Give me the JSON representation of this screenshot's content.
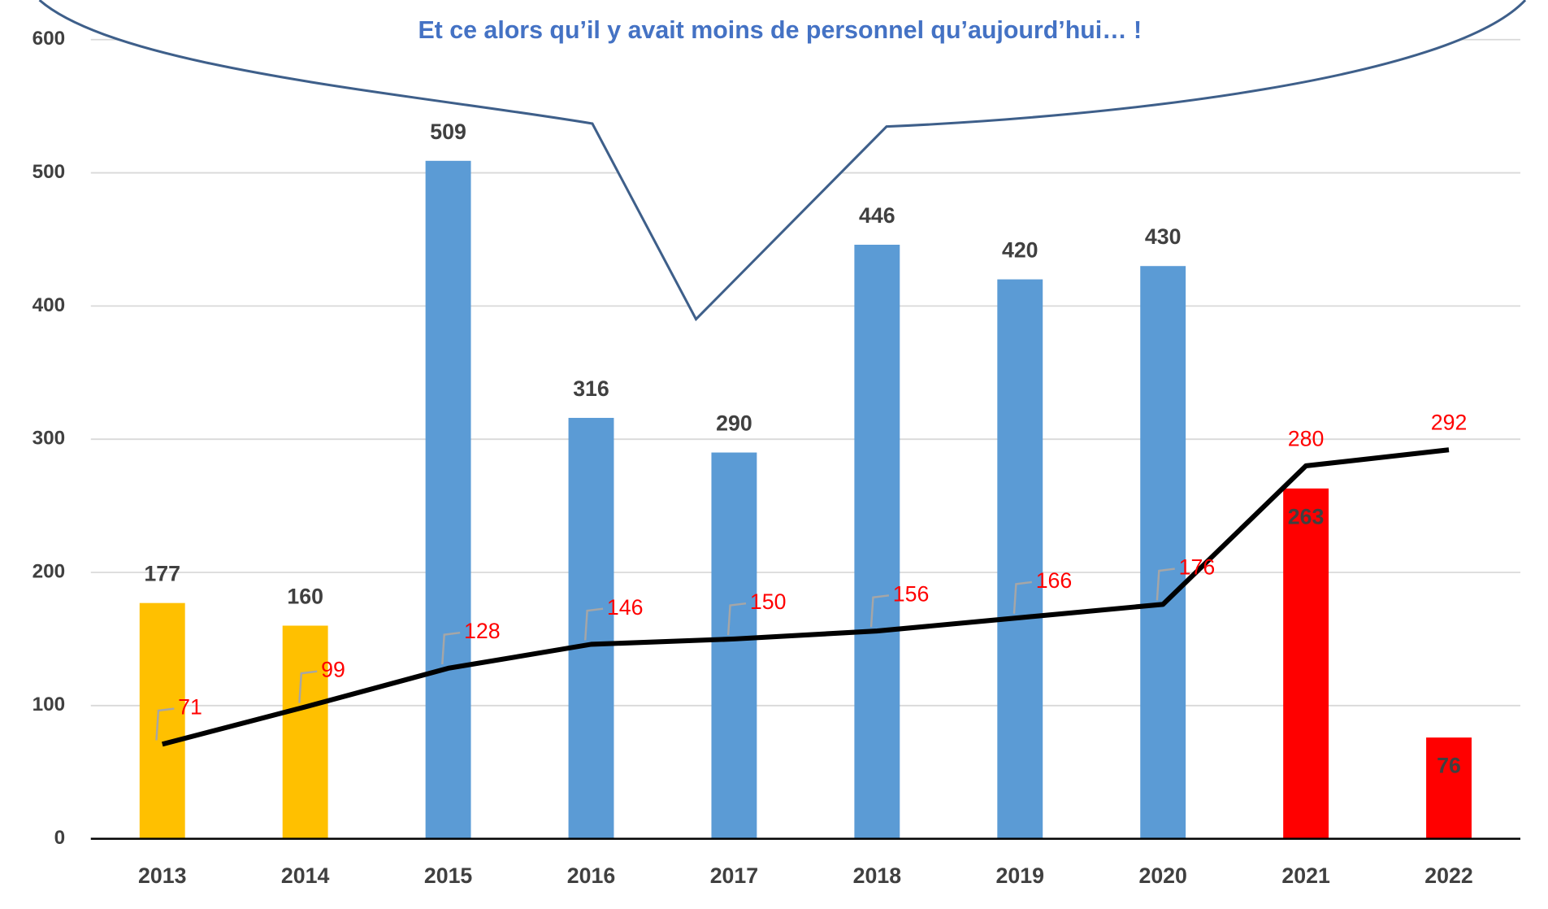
{
  "chart_data": {
    "type": "bar",
    "annotation": "Et ce alors qu’il y avait moins de personnel qu’aujourd’hui… !",
    "categories": [
      "2013",
      "2014",
      "2015",
      "2016",
      "2017",
      "2018",
      "2019",
      "2020",
      "2021",
      "2022"
    ],
    "series": [
      {
        "type": "bar",
        "colors": [
          "#ffc000",
          "#ffc000",
          "#5b9bd5",
          "#5b9bd5",
          "#5b9bd5",
          "#5b9bd5",
          "#5b9bd5",
          "#5b9bd5",
          "#ff0000",
          "#ff0000"
        ],
        "values": [
          177,
          160,
          509,
          316,
          290,
          446,
          420,
          430,
          263,
          76
        ]
      },
      {
        "type": "line",
        "color": "#000000",
        "values": [
          71,
          99,
          128,
          146,
          150,
          156,
          166,
          176,
          280,
          292
        ]
      }
    ],
    "ylim": [
      0,
      600
    ],
    "yticks": [
      0,
      100,
      200,
      300,
      400,
      500,
      600
    ],
    "grid": true
  }
}
